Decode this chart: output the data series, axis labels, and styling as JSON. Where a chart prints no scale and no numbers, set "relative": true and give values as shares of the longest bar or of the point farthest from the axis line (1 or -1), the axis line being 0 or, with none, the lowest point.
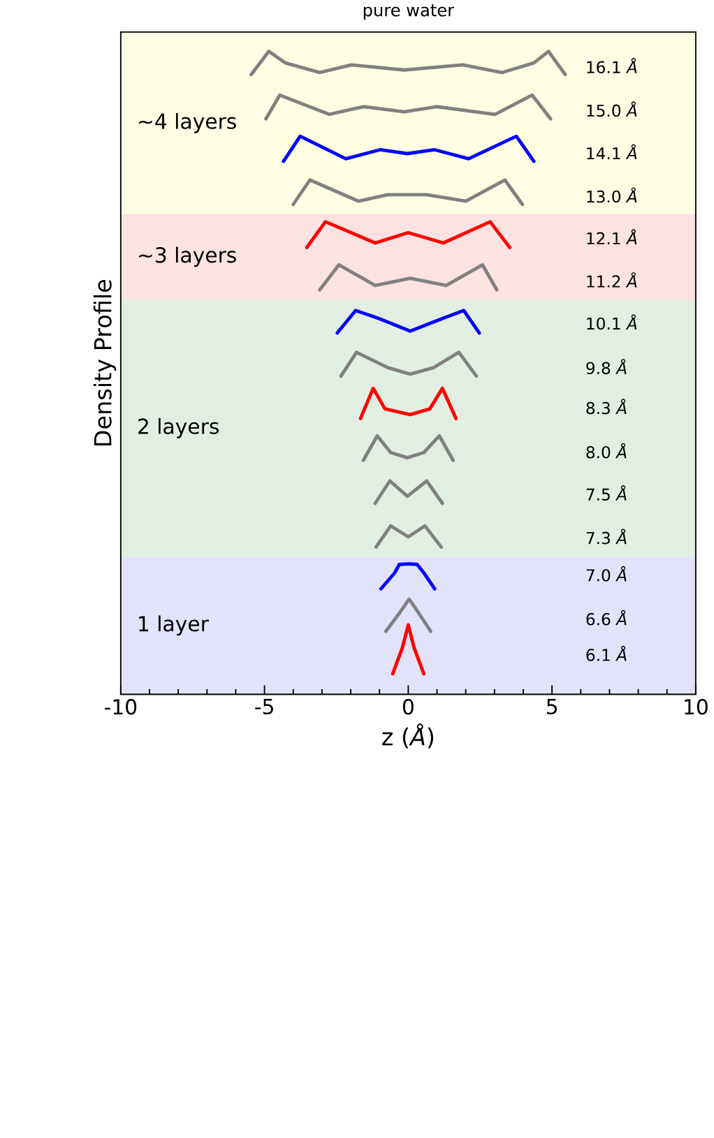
{
  "chart_data": {
    "type": "line",
    "title": "pure water",
    "xlabel": "z (*Å*)",
    "ylabel": "Density Profile",
    "relative": true,
    "xlim": [
      -10,
      10
    ],
    "xticks": [
      -10,
      {
        "value": -9,
        "label": null
      },
      {
        "value": -8,
        "label": null
      },
      {
        "value": -7,
        "label": null
      },
      {
        "value": -6,
        "label": null
      },
      -5,
      {
        "value": -4,
        "label": null
      },
      {
        "value": -3,
        "label": null
      },
      {
        "value": -2,
        "label": null
      },
      {
        "value": -1,
        "label": null
      },
      0,
      {
        "value": 1,
        "label": null
      },
      {
        "value": 2,
        "label": null
      },
      {
        "value": 3,
        "label": null
      },
      {
        "value": 4,
        "label": null
      },
      5,
      {
        "value": 6,
        "label": null
      },
      {
        "value": 7,
        "label": null
      },
      {
        "value": 8,
        "label": null
      },
      {
        "value": 9,
        "label": null
      },
      10
    ],
    "bands": [
      {
        "axis": "y",
        "from": 0.747,
        "to": 1.03,
        "label": "~4 layers",
        "color": "#fefee3"
      },
      {
        "axis": "y",
        "from": 0.614,
        "to": 0.747,
        "label": "~3 layers",
        "color": "#fde2e2"
      },
      {
        "axis": "y",
        "from": 0.214,
        "to": 0.614,
        "label": "2 layers",
        "color": "#e3eee3"
      },
      {
        "axis": "y",
        "from": 0,
        "to": 0.214,
        "label": "1 layer",
        "color": "#e2e2fa"
      }
    ],
    "series": [
      {
        "name": "16.1 *Å*",
        "color": "#808080",
        "x": [
          -5.46,
          -4.85,
          -4.27,
          -3.08,
          -1.97,
          -0.14,
          1.9,
          3.25,
          4.37,
          4.88,
          5.46
        ],
        "values": [
          0.964,
          1.0,
          0.982,
          0.967,
          0.979,
          0.971,
          0.979,
          0.967,
          0.982,
          1.0,
          0.964
        ]
      },
      {
        "name": "15.0 *Å*",
        "color": "#808080",
        "x": [
          -4.95,
          -4.47,
          -2.75,
          -1.56,
          -0.14,
          0.98,
          3.02,
          4.31,
          4.95
        ],
        "values": [
          0.895,
          0.932,
          0.902,
          0.914,
          0.906,
          0.914,
          0.902,
          0.932,
          0.895
        ]
      },
      {
        "name": "14.1 *Å*",
        "color": "#0000ff",
        "x": [
          -4.34,
          -3.76,
          -2.17,
          -0.98,
          -0.03,
          0.92,
          2.1,
          3.76,
          4.37
        ],
        "values": [
          0.829,
          0.868,
          0.833,
          0.847,
          0.841,
          0.847,
          0.833,
          0.868,
          0.829
        ]
      },
      {
        "name": "13.0 *Å*",
        "color": "#808080",
        "x": [
          -4.0,
          -3.42,
          -1.73,
          -0.71,
          0.64,
          2.0,
          3.36,
          3.97
        ],
        "values": [
          0.762,
          0.8,
          0.767,
          0.777,
          0.777,
          0.767,
          0.8,
          0.762
        ]
      },
      {
        "name": "12.1 *Å*",
        "color": "#ff0000",
        "x": [
          -3.53,
          -2.88,
          -1.15,
          0,
          1.22,
          2.85,
          3.53
        ],
        "values": [
          0.695,
          0.735,
          0.702,
          0.718,
          0.702,
          0.735,
          0.695
        ]
      },
      {
        "name": "11.2 *Å*",
        "color": "#808080",
        "x": [
          -3.08,
          -2.41,
          -1.15,
          0.07,
          1.32,
          2.58,
          3.08
        ],
        "values": [
          0.629,
          0.668,
          0.636,
          0.647,
          0.636,
          0.668,
          0.629
        ]
      },
      {
        "name": "10.1 *Å*",
        "color": "#0000ff",
        "x": [
          -2.47,
          -1.83,
          -1.05,
          0.07,
          1.22,
          1.93,
          2.47
        ],
        "values": [
          0.562,
          0.597,
          0.585,
          0.565,
          0.585,
          0.597,
          0.562
        ]
      },
      {
        "name": "9.8 *Å*",
        "color": "#808080",
        "x": [
          -2.34,
          -1.8,
          -0.71,
          0.07,
          0.88,
          1.76,
          2.37
        ],
        "values": [
          0.495,
          0.532,
          0.508,
          0.498,
          0.508,
          0.532,
          0.495
        ]
      },
      {
        "name": "8.3 *Å*",
        "color": "#ff0000",
        "x": [
          -1.66,
          -1.22,
          -0.81,
          0.07,
          0.75,
          1.19,
          1.66
        ],
        "values": [
          0.429,
          0.476,
          0.444,
          0.435,
          0.444,
          0.476,
          0.429
        ]
      },
      {
        "name": "8.0 *Å*",
        "color": "#808080",
        "x": [
          -1.56,
          -1.08,
          -0.61,
          -0.03,
          0.54,
          1.08,
          1.56
        ],
        "values": [
          0.364,
          0.402,
          0.376,
          0.368,
          0.376,
          0.402,
          0.364
        ]
      },
      {
        "name": "7.5 *Å*",
        "color": "#808080",
        "x": [
          -1.15,
          -0.64,
          -0.03,
          0.64,
          1.19
        ],
        "values": [
          0.297,
          0.332,
          0.308,
          0.332,
          0.297
        ]
      },
      {
        "name": "7.3 *Å*",
        "color": "#808080",
        "x": [
          -1.12,
          -0.61,
          0,
          0.58,
          1.15
        ],
        "values": [
          0.229,
          0.262,
          0.245,
          0.262,
          0.229
        ]
      },
      {
        "name": "7.0 *Å*",
        "color": "#0000ff",
        "x": [
          -0.95,
          -0.47,
          -0.31,
          0,
          0.31,
          0.54,
          0.92
        ],
        "values": [
          0.164,
          0.189,
          0.202,
          0.203,
          0.202,
          0.189,
          0.164
        ]
      },
      {
        "name": "6.6 *Å*",
        "color": "#808080",
        "x": [
          -0.78,
          -0.31,
          0.03,
          0.37,
          0.78
        ],
        "values": [
          0.098,
          0.126,
          0.148,
          0.126,
          0.098
        ]
      },
      {
        "name": "6.1 *Å*",
        "color": "#ff0000",
        "x": [
          -0.54,
          -0.2,
          0,
          0.2,
          0.54
        ],
        "values": [
          0.032,
          0.073,
          0.108,
          0.073,
          0.032
        ]
      }
    ]
  }
}
